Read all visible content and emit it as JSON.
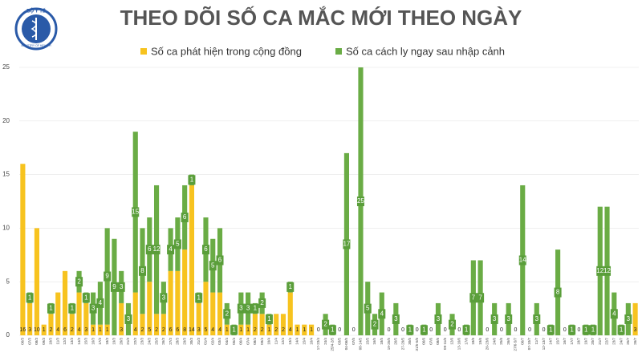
{
  "logo": {
    "top": "BỘ Y TẾ",
    "bottom": "MINISTRY OF HEALTH"
  },
  "chart_data": {
    "type": "stacked_bar",
    "title": "THEO DÕI SỐ CA MẮC MỚI THEO NGÀY",
    "categories": [
      "06/3",
      "07/3",
      "08/3",
      "09/3",
      "10/3",
      "11/3",
      "12/3",
      "13/3",
      "14/3",
      "15/3",
      "16/3",
      "17/3",
      "18/3",
      "19/3",
      "20/3",
      "21/3",
      "22/3",
      "23/3",
      "24/3",
      "25/3",
      "26/3",
      "27/3",
      "28/3",
      "29/3",
      "30/3",
      "31/3",
      "01/4",
      "02/4",
      "03/4",
      "04/4",
      "05/4",
      "06/4",
      "07/4",
      "08/4",
      "09/4",
      "10/4",
      "11/4",
      "12/4",
      "13/4",
      "14/4",
      "15/4",
      "16/4",
      "17-23/4",
      "24/4",
      "25/4-2/5",
      "03/5",
      "04-06/5",
      "07/5",
      "08-14/5",
      "15/5",
      "16/5",
      "18/5",
      "19-25/5",
      "26/5",
      "27-29/5",
      "30/5",
      "31/5-5/6",
      "06/6",
      "07/6",
      "08/6",
      "09-11/6",
      "12/6",
      "13-16/6",
      "17/6",
      "18/6",
      "19/6",
      "20-23/6",
      "24/6",
      "25/6",
      "26/6",
      "27/6-5/7",
      "06/7",
      "07-10/7",
      "11/7",
      "12-13/7",
      "14/7",
      "15/7",
      "16/7",
      "17/7",
      "18/7",
      "19/7",
      "20/7",
      "21/7",
      "22/7",
      "23/7",
      "24/7",
      "25/7",
      "26/7"
    ],
    "series": [
      {
        "name": "Số ca phát hiện trong cộng đồng",
        "color": "#f7c31f",
        "values": [
          16,
          3,
          10,
          1,
          2,
          4,
          6,
          2,
          4,
          3,
          1,
          1,
          1,
          0,
          3,
          0,
          4,
          2,
          5,
          2,
          2,
          6,
          6,
          8,
          14,
          3,
          5,
          4,
          4,
          1,
          0,
          1,
          1,
          2,
          2,
          1,
          2,
          2,
          4,
          1,
          1,
          1,
          0,
          0,
          0,
          0,
          0,
          0,
          0,
          0,
          0,
          0,
          0,
          0,
          0,
          0,
          0,
          0,
          0,
          0,
          0,
          0,
          0,
          0,
          0,
          0,
          0,
          0,
          0,
          0,
          0,
          0,
          0,
          0,
          0,
          0,
          0,
          0,
          0,
          0,
          0,
          0,
          0,
          0,
          0,
          0,
          0,
          3
        ]
      },
      {
        "name": "Số ca cách ly ngay sau nhập cảnh",
        "color": "#6aac45",
        "values": [
          0,
          1,
          0,
          0,
          1,
          0,
          0,
          1,
          2,
          1,
          3,
          4,
          9,
          9,
          3,
          3,
          15,
          8,
          6,
          12,
          3,
          4,
          5,
          6,
          1,
          1,
          6,
          5,
          6,
          2,
          1,
          3,
          3,
          1,
          2,
          1,
          0,
          0,
          1,
          0,
          0,
          0,
          0,
          2,
          1,
          0,
          17,
          0,
          25,
          5,
          2,
          4,
          0,
          3,
          0,
          1,
          0,
          1,
          0,
          3,
          0,
          2,
          0,
          1,
          7,
          7,
          0,
          3,
          0,
          3,
          0,
          14,
          0,
          3,
          0,
          1,
          8,
          0,
          1,
          0,
          1,
          1,
          12,
          12,
          4,
          1,
          3,
          0
        ]
      }
    ],
    "ylim": [
      0,
      25
    ],
    "yticks": [
      0,
      5,
      10,
      15,
      20,
      25
    ]
  }
}
